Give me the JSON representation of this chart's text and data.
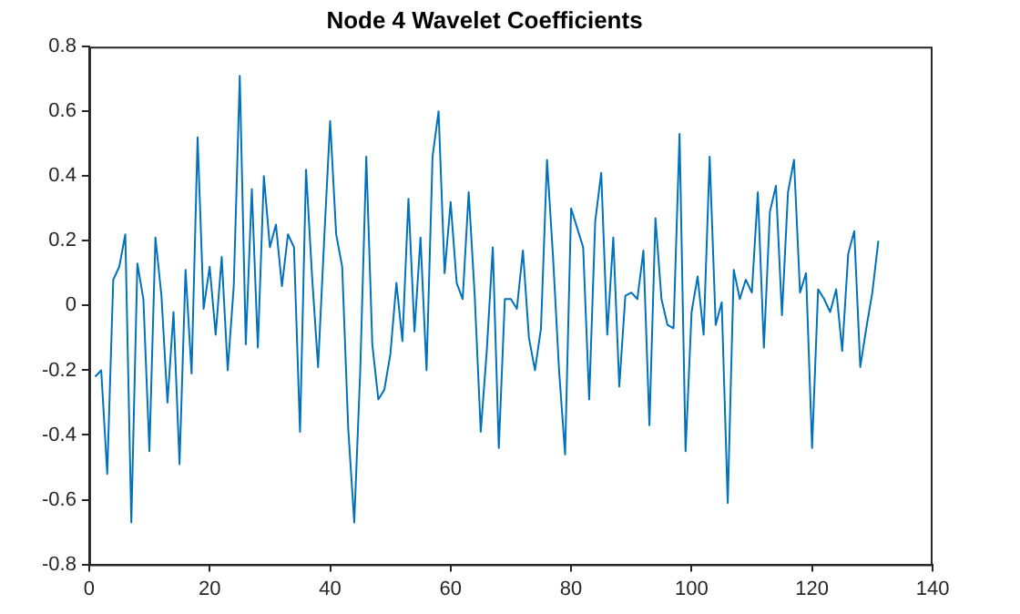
{
  "chart_data": {
    "type": "line",
    "title": "Node 4 Wavelet Coefficients",
    "x": [
      1,
      2,
      3,
      4,
      5,
      6,
      7,
      8,
      9,
      10,
      11,
      12,
      13,
      14,
      15,
      16,
      17,
      18,
      19,
      20,
      21,
      22,
      23,
      24,
      25,
      26,
      27,
      28,
      29,
      30,
      31,
      32,
      33,
      34,
      35,
      36,
      37,
      38,
      39,
      40,
      41,
      42,
      43,
      44,
      45,
      46,
      47,
      48,
      49,
      50,
      51,
      52,
      53,
      54,
      55,
      56,
      57,
      58,
      59,
      60,
      61,
      62,
      63,
      64,
      65,
      66,
      67,
      68,
      69,
      70,
      71,
      72,
      73,
      74,
      75,
      76,
      77,
      78,
      79,
      80,
      81,
      82,
      83,
      84,
      85,
      86,
      87,
      88,
      89,
      90,
      91,
      92,
      93,
      94,
      95,
      96,
      97,
      98,
      99,
      100,
      101,
      102,
      103,
      104,
      105,
      106,
      107,
      108,
      109,
      110,
      111,
      112,
      113,
      114,
      115,
      116,
      117,
      118,
      119,
      120,
      121,
      122,
      123,
      124,
      125,
      126,
      127,
      128,
      129,
      130,
      131
    ],
    "series": [
      {
        "color": "#0072bd",
        "values": [
          -0.22,
          -0.2,
          -0.52,
          0.08,
          0.12,
          0.22,
          -0.67,
          0.13,
          0.02,
          -0.45,
          0.21,
          0.03,
          -0.3,
          -0.02,
          -0.49,
          0.11,
          -0.21,
          0.52,
          -0.01,
          0.12,
          -0.09,
          0.15,
          -0.2,
          0.06,
          0.71,
          -0.12,
          0.36,
          -0.13,
          0.4,
          0.18,
          0.25,
          0.06,
          0.22,
          0.18,
          -0.39,
          0.42,
          0.09,
          -0.19,
          0.2,
          0.57,
          0.22,
          0.12,
          -0.38,
          -0.67,
          -0.2,
          0.46,
          -0.12,
          -0.29,
          -0.26,
          -0.15,
          0.07,
          -0.11,
          0.33,
          -0.08,
          0.21,
          -0.2,
          0.46,
          0.6,
          0.1,
          0.32,
          0.07,
          0.02,
          0.35,
          0.03,
          -0.39,
          -0.14,
          0.18,
          -0.44,
          0.02,
          0.02,
          -0.01,
          0.17,
          -0.1,
          -0.2,
          -0.07,
          0.45,
          0.15,
          -0.2,
          -0.46,
          0.3,
          0.24,
          0.18,
          -0.29,
          0.26,
          0.41,
          -0.09,
          0.21,
          -0.25,
          0.03,
          0.04,
          0.02,
          0.17,
          -0.37,
          0.27,
          0.02,
          -0.06,
          -0.07,
          0.53,
          -0.45,
          -0.02,
          0.09,
          -0.09,
          0.46,
          -0.06,
          0.01,
          -0.61,
          0.11,
          0.02,
          0.08,
          0.04,
          0.35,
          -0.13,
          0.29,
          0.37,
          -0.03,
          0.35,
          0.45,
          0.04,
          0.1,
          -0.44,
          0.05,
          0.02,
          -0.02,
          0.05,
          -0.14,
          0.16,
          0.23,
          -0.19,
          -0.07,
          0.04,
          0.2
        ]
      }
    ],
    "xlim": [
      0,
      140
    ],
    "xticks": [
      0,
      20,
      40,
      60,
      80,
      100,
      120,
      140
    ],
    "ylim": [
      -0.8,
      0.8
    ],
    "yticks": [
      -0.8,
      -0.6,
      -0.4,
      -0.2,
      0,
      0.2,
      0.4,
      0.6,
      0.8
    ],
    "grid": false,
    "legend": false,
    "marker": "none",
    "line_style": "solid"
  }
}
